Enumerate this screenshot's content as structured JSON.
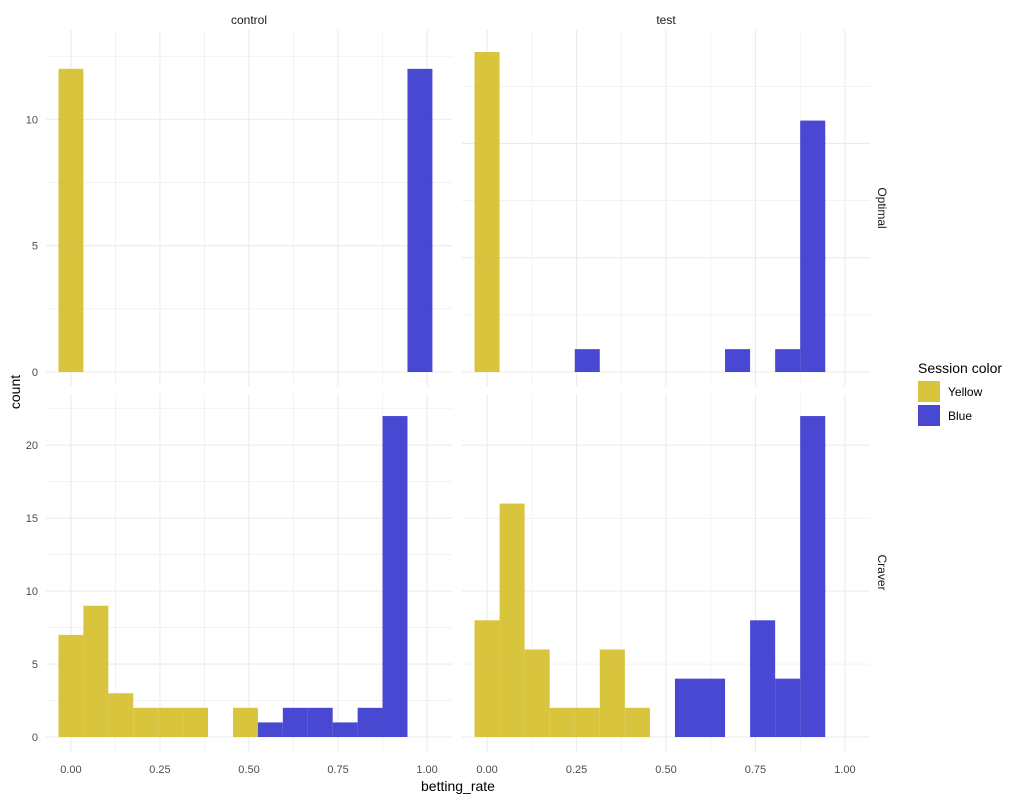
{
  "chart_data": {
    "type": "bar",
    "subtype": "faceted-histogram",
    "xlabel": "betting_rate",
    "ylabel": "count",
    "facet_columns": [
      "control",
      "test"
    ],
    "facet_rows": [
      "Optimal",
      "Craver"
    ],
    "x_ticks": [
      "0.00",
      "0.25",
      "0.50",
      "0.75",
      "1.00"
    ],
    "xlim": [
      -0.07,
      1.07
    ],
    "bin_width": 0.07,
    "bin_starts": [
      -0.035,
      0.035,
      0.105,
      0.175,
      0.245,
      0.315,
      0.385,
      0.455,
      0.525,
      0.595,
      0.665,
      0.735,
      0.805,
      0.875,
      0.945
    ],
    "grid": true,
    "legend": {
      "title": "Session color",
      "position": "right",
      "entries": [
        {
          "name": "Yellow",
          "color": "#d4bc23"
        },
        {
          "name": "Blue",
          "color": "#2f2fcc"
        }
      ]
    },
    "panels": [
      {
        "col": "control",
        "row": "Optimal",
        "ylim": [
          0,
          13.3
        ],
        "y_ticks": [
          0,
          5,
          10
        ],
        "series": [
          {
            "name": "Yellow",
            "values": [
              12,
              0,
              0,
              0,
              0,
              0,
              0,
              0,
              0,
              0,
              0,
              0,
              0,
              0,
              0
            ]
          },
          {
            "name": "Blue",
            "values": [
              0,
              0,
              0,
              0,
              0,
              0,
              0,
              0,
              0,
              0,
              0,
              0,
              0,
              0,
              12
            ]
          }
        ]
      },
      {
        "col": "test",
        "row": "Optimal",
        "ylim": [
          0,
          14.7
        ],
        "y_ticks": [
          0,
          5,
          10
        ],
        "series": [
          {
            "name": "Yellow",
            "values": [
              14,
              0,
              0,
              0,
              0,
              0,
              0,
              0,
              0,
              0,
              0,
              0,
              0,
              0,
              0
            ]
          },
          {
            "name": "Blue",
            "values": [
              0,
              0,
              0,
              0,
              1,
              0,
              0,
              0,
              0,
              0,
              1,
              0,
              1,
              11,
              0
            ]
          }
        ]
      },
      {
        "col": "control",
        "row": "Craver",
        "ylim": [
          0,
          23.1
        ],
        "y_ticks": [
          0,
          5,
          10,
          15,
          20
        ],
        "series": [
          {
            "name": "Yellow",
            "values": [
              7,
              9,
              3,
              2,
              2,
              2,
              0,
              2,
              0,
              0,
              0,
              0,
              0,
              0,
              0
            ]
          },
          {
            "name": "Blue",
            "values": [
              0,
              0,
              0,
              0,
              0,
              0,
              0,
              0,
              1,
              2,
              2,
              1,
              2,
              22,
              0
            ]
          }
        ]
      },
      {
        "col": "test",
        "row": "Craver",
        "ylim": [
          0,
          11.55
        ],
        "y_ticks": [
          0,
          5,
          10
        ],
        "series": [
          {
            "name": "Yellow",
            "values": [
              4,
              8,
              3,
              1,
              1,
              3,
              1,
              0,
              0,
              0,
              0,
              0,
              0,
              0,
              0
            ]
          },
          {
            "name": "Blue",
            "values": [
              0,
              0,
              0,
              0,
              0,
              0,
              0,
              0,
              2,
              2,
              0,
              4,
              2,
              11,
              0
            ]
          }
        ]
      }
    ]
  }
}
